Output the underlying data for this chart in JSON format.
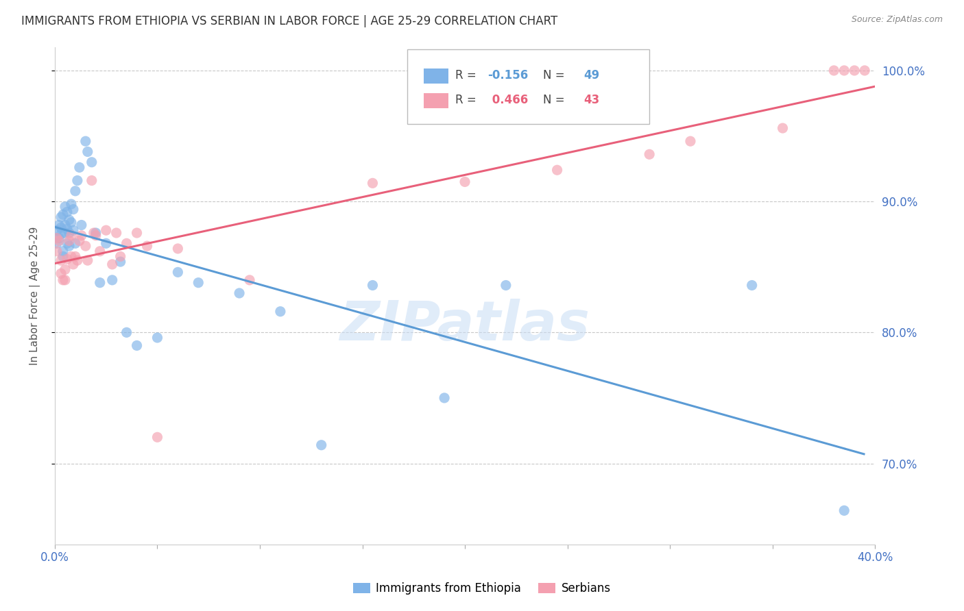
{
  "title": "IMMIGRANTS FROM ETHIOPIA VS SERBIAN IN LABOR FORCE | AGE 25-29 CORRELATION CHART",
  "source": "Source: ZipAtlas.com",
  "ylabel": "In Labor Force | Age 25-29",
  "legend_label1": "Immigrants from Ethiopia",
  "legend_label2": "Serbians",
  "xlim": [
    0.0,
    0.4
  ],
  "ylim": [
    0.638,
    1.018
  ],
  "yticks": [
    0.7,
    0.8,
    0.9,
    1.0
  ],
  "ytick_labels": [
    "70.0%",
    "80.0%",
    "90.0%",
    "100.0%"
  ],
  "xticks": [
    0.0,
    0.05,
    0.1,
    0.15,
    0.2,
    0.25,
    0.3,
    0.35,
    0.4
  ],
  "xtick_labels": [
    "0.0%",
    "",
    "",
    "",
    "",
    "",
    "",
    "",
    "40.0%"
  ],
  "color_ethiopia": "#7fb3e8",
  "color_serbian": "#f4a0b0",
  "color_line_ethiopia": "#5b9bd5",
  "color_line_serbian": "#e8607a",
  "R_ethiopia": -0.156,
  "N_ethiopia": 49,
  "R_serbian": 0.466,
  "N_serbian": 43,
  "ethiopia_x": [
    0.001,
    0.001,
    0.002,
    0.002,
    0.003,
    0.003,
    0.003,
    0.004,
    0.004,
    0.004,
    0.005,
    0.005,
    0.005,
    0.006,
    0.006,
    0.006,
    0.007,
    0.007,
    0.007,
    0.008,
    0.008,
    0.009,
    0.009,
    0.01,
    0.01,
    0.011,
    0.012,
    0.013,
    0.015,
    0.016,
    0.018,
    0.02,
    0.022,
    0.025,
    0.028,
    0.032,
    0.035,
    0.04,
    0.05,
    0.06,
    0.07,
    0.09,
    0.11,
    0.13,
    0.155,
    0.19,
    0.22,
    0.34,
    0.385
  ],
  "ethiopia_y": [
    0.878,
    0.868,
    0.882,
    0.872,
    0.888,
    0.88,
    0.875,
    0.89,
    0.862,
    0.858,
    0.896,
    0.882,
    0.876,
    0.892,
    0.879,
    0.868,
    0.886,
    0.876,
    0.866,
    0.898,
    0.884,
    0.894,
    0.878,
    0.908,
    0.868,
    0.916,
    0.926,
    0.882,
    0.946,
    0.938,
    0.93,
    0.876,
    0.838,
    0.868,
    0.84,
    0.854,
    0.8,
    0.79,
    0.796,
    0.846,
    0.838,
    0.83,
    0.816,
    0.714,
    0.836,
    0.75,
    0.836,
    0.836,
    0.664
  ],
  "serbian_x": [
    0.001,
    0.001,
    0.002,
    0.003,
    0.003,
    0.004,
    0.005,
    0.005,
    0.006,
    0.007,
    0.008,
    0.008,
    0.009,
    0.01,
    0.011,
    0.012,
    0.013,
    0.015,
    0.016,
    0.018,
    0.019,
    0.02,
    0.022,
    0.025,
    0.028,
    0.03,
    0.032,
    0.035,
    0.04,
    0.045,
    0.05,
    0.06,
    0.095,
    0.155,
    0.2,
    0.245,
    0.29,
    0.31,
    0.355,
    0.38,
    0.385,
    0.39,
    0.395
  ],
  "serbian_y": [
    0.872,
    0.862,
    0.87,
    0.855,
    0.845,
    0.84,
    0.848,
    0.84,
    0.856,
    0.87,
    0.874,
    0.858,
    0.852,
    0.858,
    0.855,
    0.87,
    0.874,
    0.866,
    0.855,
    0.916,
    0.876,
    0.874,
    0.862,
    0.878,
    0.852,
    0.876,
    0.858,
    0.868,
    0.876,
    0.866,
    0.72,
    0.864,
    0.84,
    0.914,
    0.915,
    0.924,
    0.936,
    0.946,
    0.956,
    1.0,
    1.0,
    1.0,
    1.0
  ],
  "watermark": "ZIPatlas",
  "background_color": "#ffffff",
  "grid_color": "#c8c8c8",
  "title_color": "#333333",
  "axis_label_color": "#555555",
  "tick_color": "#4472c4"
}
